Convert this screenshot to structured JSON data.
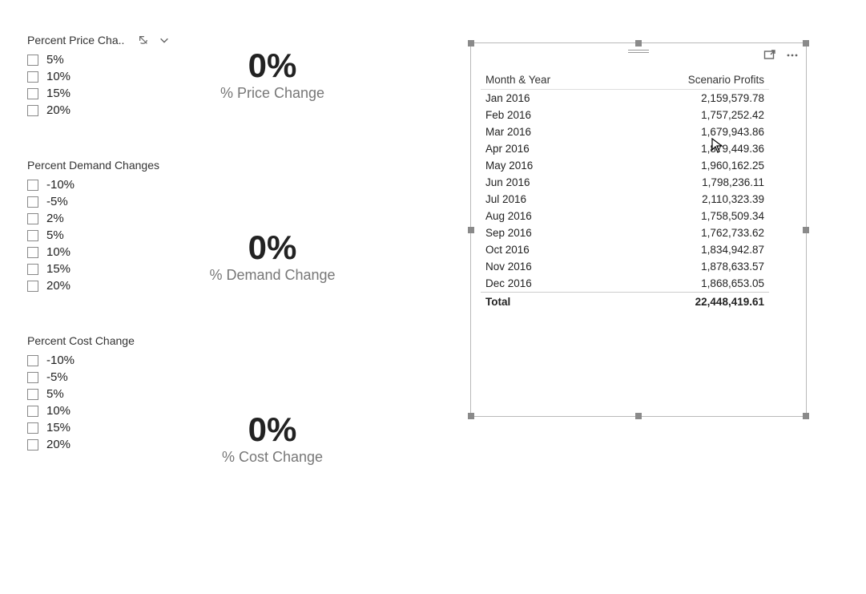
{
  "slicers": [
    {
      "title": "Percent Price Cha..",
      "show_header_icons": true,
      "items": [
        "5%",
        "10%",
        "15%",
        "20%"
      ]
    },
    {
      "title": "Percent Demand Changes",
      "show_header_icons": false,
      "items": [
        "-10%",
        "-5%",
        "2%",
        "5%",
        "10%",
        "15%",
        "20%"
      ]
    },
    {
      "title": "Percent Cost Change",
      "show_header_icons": false,
      "items": [
        "-10%",
        "-5%",
        "5%",
        "10%",
        "15%",
        "20%"
      ]
    }
  ],
  "cards": [
    {
      "value": "0%",
      "label": "% Price Change"
    },
    {
      "value": "0%",
      "label": "% Demand Change"
    },
    {
      "value": "0%",
      "label": "% Cost Change"
    }
  ],
  "table": {
    "columns": [
      "Month & Year",
      "Scenario Profits"
    ],
    "rows": [
      [
        "Jan 2016",
        "2,159,579.78"
      ],
      [
        "Feb 2016",
        "1,757,252.42"
      ],
      [
        "Mar 2016",
        "1,679,943.86"
      ],
      [
        "Apr 2016",
        "1,879,449.36"
      ],
      [
        "May 2016",
        "1,960,162.25"
      ],
      [
        "Jun 2016",
        "1,798,236.11"
      ],
      [
        "Jul 2016",
        "2,110,323.39"
      ],
      [
        "Aug 2016",
        "1,758,509.34"
      ],
      [
        "Sep 2016",
        "1,762,733.62"
      ],
      [
        "Oct 2016",
        "1,834,942.87"
      ],
      [
        "Nov 2016",
        "1,878,633.57"
      ],
      [
        "Dec 2016",
        "1,868,653.05"
      ]
    ],
    "total_label": "Total",
    "total_value": "22,448,419.61"
  },
  "colors": {
    "background": "#ffffff",
    "text": "#222222",
    "muted": "#777777",
    "border": "#b9b9b9",
    "handle": "#8a8a8a"
  }
}
